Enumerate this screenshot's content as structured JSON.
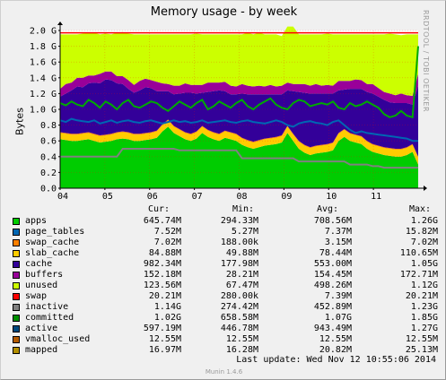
{
  "chart_data": {
    "type": "area",
    "title": "Memory usage - by week",
    "ylabel": "Bytes",
    "xlabel": "",
    "y_ticks": [
      "0.0",
      "0.2",
      "0.4",
      "0.6",
      "0.8",
      "1.0 G",
      "1.2 G",
      "1.4 G",
      "1.6 G",
      "1.8 G",
      "2.0 G"
    ],
    "x_ticks": [
      "04",
      "05",
      "06",
      "07",
      "08",
      "09",
      "10",
      "11"
    ],
    "ylim": [
      0,
      2.0
    ],
    "x_range": [
      0,
      8
    ],
    "grid": true,
    "legend_placement": "bottom",
    "stacked_series": [
      {
        "name": "apps",
        "color": "#00cc00",
        "values": [
          0.62,
          0.61,
          0.6,
          0.6,
          0.61,
          0.62,
          0.6,
          0.58,
          0.59,
          0.6,
          0.62,
          0.63,
          0.62,
          0.6,
          0.6,
          0.61,
          0.62,
          0.64,
          0.72,
          0.78,
          0.7,
          0.66,
          0.62,
          0.6,
          0.63,
          0.7,
          0.65,
          0.62,
          0.6,
          0.64,
          0.62,
          0.6,
          0.55,
          0.52,
          0.5,
          0.52,
          0.54,
          0.55,
          0.56,
          0.58,
          0.7,
          0.6,
          0.5,
          0.45,
          0.42,
          0.44,
          0.45,
          0.46,
          0.48,
          0.6,
          0.65,
          0.6,
          0.58,
          0.56,
          0.5,
          0.46,
          0.44,
          0.42,
          0.41,
          0.4,
          0.4,
          0.42,
          0.46,
          0.3
        ]
      },
      {
        "name": "slab_cache",
        "color": "#ffcc00",
        "values": [
          0.08,
          0.08,
          0.08,
          0.08,
          0.08,
          0.08,
          0.08,
          0.08,
          0.08,
          0.08,
          0.08,
          0.08,
          0.08,
          0.08,
          0.08,
          0.08,
          0.08,
          0.08,
          0.08,
          0.08,
          0.08,
          0.08,
          0.08,
          0.08,
          0.08,
          0.08,
          0.08,
          0.08,
          0.08,
          0.08,
          0.08,
          0.08,
          0.08,
          0.08,
          0.08,
          0.08,
          0.08,
          0.08,
          0.08,
          0.08,
          0.08,
          0.08,
          0.09,
          0.09,
          0.09,
          0.09,
          0.09,
          0.09,
          0.09,
          0.09,
          0.09,
          0.09,
          0.09,
          0.09,
          0.09,
          0.09,
          0.09,
          0.09,
          0.09,
          0.09,
          0.09,
          0.09,
          0.09,
          0.09
        ]
      },
      {
        "name": "swap_cache",
        "color": "#ff7f00",
        "values": [
          0.01,
          0.01,
          0.01,
          0.01,
          0.01,
          0.01,
          0.01,
          0.01,
          0.01,
          0.01,
          0.01,
          0.01,
          0.01,
          0.01,
          0.01,
          0.01,
          0.01,
          0.01,
          0.01,
          0.01,
          0.01,
          0.01,
          0.01,
          0.01,
          0.01,
          0.01,
          0.01,
          0.01,
          0.01,
          0.01,
          0.01,
          0.01,
          0.01,
          0.01,
          0.01,
          0.01,
          0.01,
          0.01,
          0.01,
          0.01,
          0.01,
          0.01,
          0.01,
          0.01,
          0.01,
          0.01,
          0.01,
          0.01,
          0.01,
          0.01,
          0.01,
          0.01,
          0.01,
          0.01,
          0.01,
          0.01,
          0.01,
          0.01,
          0.01,
          0.01,
          0.01,
          0.01,
          0.01,
          0.01
        ]
      },
      {
        "name": "cache",
        "color": "#330099",
        "values": [
          0.45,
          0.5,
          0.55,
          0.6,
          0.58,
          0.62,
          0.65,
          0.66,
          0.7,
          0.68,
          0.62,
          0.6,
          0.55,
          0.52,
          0.55,
          0.58,
          0.56,
          0.5,
          0.42,
          0.36,
          0.4,
          0.45,
          0.5,
          0.52,
          0.48,
          0.42,
          0.48,
          0.52,
          0.55,
          0.5,
          0.48,
          0.5,
          0.56,
          0.58,
          0.6,
          0.58,
          0.56,
          0.55,
          0.54,
          0.52,
          0.45,
          0.54,
          0.62,
          0.66,
          0.68,
          0.66,
          0.65,
          0.64,
          0.62,
          0.54,
          0.5,
          0.56,
          0.58,
          0.6,
          0.62,
          0.64,
          0.62,
          0.6,
          0.58,
          0.58,
          0.58,
          0.56,
          0.5,
          0.9
        ]
      },
      {
        "name": "buffers",
        "color": "#990099",
        "values": [
          0.1,
          0.12,
          0.1,
          0.11,
          0.12,
          0.1,
          0.09,
          0.12,
          0.1,
          0.11,
          0.09,
          0.1,
          0.11,
          0.1,
          0.12,
          0.11,
          0.1,
          0.12,
          0.1,
          0.09,
          0.11,
          0.1,
          0.12,
          0.1,
          0.11,
          0.1,
          0.12,
          0.11,
          0.1,
          0.12,
          0.11,
          0.1,
          0.12,
          0.11,
          0.1,
          0.11,
          0.1,
          0.12,
          0.1,
          0.11,
          0.1,
          0.09,
          0.1,
          0.11,
          0.1,
          0.12,
          0.1,
          0.11,
          0.1,
          0.12,
          0.11,
          0.1,
          0.12,
          0.11,
          0.1,
          0.12,
          0.11,
          0.1,
          0.11,
          0.1,
          0.12,
          0.1,
          0.11,
          0.15
        ]
      },
      {
        "name": "unused",
        "color": "#ccff00",
        "values": [
          0.69,
          0.63,
          0.61,
          0.55,
          0.56,
          0.54,
          0.54,
          0.5,
          0.48,
          0.47,
          0.55,
          0.56,
          0.59,
          0.64,
          0.59,
          0.56,
          0.58,
          0.6,
          0.62,
          0.63,
          0.65,
          0.65,
          0.62,
          0.64,
          0.65,
          0.64,
          0.61,
          0.61,
          0.61,
          0.6,
          0.65,
          0.66,
          0.63,
          0.67,
          0.66,
          0.67,
          0.66,
          0.64,
          0.66,
          0.63,
          0.71,
          0.73,
          0.63,
          0.63,
          0.65,
          0.63,
          0.65,
          0.65,
          0.65,
          0.59,
          0.59,
          0.59,
          0.57,
          0.58,
          0.63,
          0.63,
          0.68,
          0.73,
          0.76,
          0.77,
          0.74,
          0.77,
          0.78,
          0.5
        ]
      }
    ],
    "line_series": [
      {
        "name": "committed",
        "color": "#00aa00",
        "values": [
          1.08,
          1.05,
          1.1,
          1.06,
          1.04,
          1.12,
          1.08,
          1.02,
          1.1,
          1.06,
          1.0,
          1.08,
          1.12,
          1.04,
          1.02,
          1.06,
          1.1,
          1.08,
          1.02,
          0.98,
          1.04,
          1.1,
          1.06,
          1.02,
          1.08,
          1.12,
          1.0,
          1.04,
          1.1,
          1.06,
          1.02,
          1.08,
          1.12,
          1.04,
          1.0,
          1.06,
          1.1,
          1.14,
          1.06,
          1.02,
          1.0,
          1.08,
          1.12,
          1.1,
          1.04,
          1.06,
          1.08,
          1.06,
          1.1,
          1.02,
          1.0,
          1.08,
          1.04,
          1.06,
          1.1,
          1.06,
          1.02,
          0.94,
          0.9,
          0.92,
          0.98,
          0.92,
          0.9,
          1.8
        ]
      },
      {
        "name": "active",
        "color": "#0066b3",
        "values": [
          0.86,
          0.84,
          0.88,
          0.86,
          0.85,
          0.84,
          0.86,
          0.82,
          0.84,
          0.86,
          0.83,
          0.85,
          0.86,
          0.84,
          0.83,
          0.85,
          0.86,
          0.84,
          0.82,
          0.84,
          0.86,
          0.84,
          0.85,
          0.83,
          0.84,
          0.86,
          0.83,
          0.84,
          0.85,
          0.86,
          0.84,
          0.83,
          0.85,
          0.86,
          0.84,
          0.83,
          0.82,
          0.84,
          0.86,
          0.84,
          0.8,
          0.78,
          0.82,
          0.84,
          0.85,
          0.83,
          0.82,
          0.8,
          0.84,
          0.86,
          0.8,
          0.74,
          0.7,
          0.72,
          0.7,
          0.69,
          0.68,
          0.67,
          0.66,
          0.65,
          0.64,
          0.63,
          0.6,
          0.6
        ]
      },
      {
        "name": "inactive",
        "color": "#808080",
        "values": [
          0.4,
          0.4,
          0.4,
          0.4,
          0.4,
          0.4,
          0.4,
          0.4,
          0.4,
          0.4,
          0.4,
          0.5,
          0.5,
          0.5,
          0.5,
          0.5,
          0.5,
          0.5,
          0.5,
          0.5,
          0.5,
          0.48,
          0.48,
          0.48,
          0.48,
          0.48,
          0.48,
          0.48,
          0.48,
          0.48,
          0.48,
          0.48,
          0.38,
          0.38,
          0.38,
          0.38,
          0.38,
          0.38,
          0.38,
          0.38,
          0.38,
          0.38,
          0.34,
          0.34,
          0.34,
          0.34,
          0.34,
          0.34,
          0.34,
          0.34,
          0.34,
          0.3,
          0.3,
          0.3,
          0.3,
          0.28,
          0.28,
          0.26,
          0.26,
          0.26,
          0.26,
          0.26,
          0.26,
          0.26
        ]
      },
      {
        "name": "swap",
        "color": "#ff0000",
        "values": [
          1.97,
          1.97,
          1.97,
          1.97,
          1.97,
          1.97,
          1.97,
          1.97,
          1.97,
          1.97,
          1.97,
          1.97,
          1.97,
          1.97,
          1.97,
          1.97,
          1.97,
          1.97,
          1.97,
          1.97,
          1.97,
          1.97,
          1.97,
          1.97,
          1.97,
          1.97,
          1.97,
          1.97,
          1.97,
          1.97,
          1.97,
          1.97,
          1.97,
          1.97,
          1.97,
          1.97,
          1.97,
          1.97,
          1.97,
          1.97,
          1.97,
          1.97,
          1.97,
          1.97,
          1.97,
          1.97,
          1.97,
          1.97,
          1.97,
          1.97,
          1.97,
          1.97,
          1.97,
          1.97,
          1.97,
          1.97,
          1.97,
          1.97,
          1.97,
          1.97,
          1.97,
          1.97,
          1.97,
          1.97
        ]
      }
    ]
  },
  "watermark": "RRDTOOL / TOBI OETIKER",
  "legend": {
    "headers": [
      "Cur:",
      "Min:",
      "Avg:",
      "Max:"
    ],
    "rows": [
      {
        "name": "apps",
        "color": "#00cc00",
        "cur": "645.74M",
        "min": "294.33M",
        "avg": "708.56M",
        "max": "1.26G"
      },
      {
        "name": "page_tables",
        "color": "#0066b3",
        "cur": "7.52M",
        "min": "5.27M",
        "avg": "7.37M",
        "max": "15.82M"
      },
      {
        "name": "swap_cache",
        "color": "#ff8000",
        "cur": "7.02M",
        "min": "188.00k",
        "avg": "3.15M",
        "max": "7.02M"
      },
      {
        "name": "slab_cache",
        "color": "#ffcc00",
        "cur": "84.88M",
        "min": "49.88M",
        "avg": "78.44M",
        "max": "110.65M"
      },
      {
        "name": "cache",
        "color": "#330099",
        "cur": "982.34M",
        "min": "177.98M",
        "avg": "553.00M",
        "max": "1.05G"
      },
      {
        "name": "buffers",
        "color": "#990099",
        "cur": "152.18M",
        "min": "28.21M",
        "avg": "154.45M",
        "max": "172.71M"
      },
      {
        "name": "unused",
        "color": "#ccff00",
        "cur": "123.56M",
        "min": "67.47M",
        "avg": "498.26M",
        "max": "1.12G"
      },
      {
        "name": "swap",
        "color": "#ff0000",
        "cur": "20.21M",
        "min": "280.00k",
        "avg": "7.39M",
        "max": "20.21M"
      },
      {
        "name": "inactive",
        "color": "#808080",
        "cur": "1.14G",
        "min": "274.42M",
        "avg": "452.89M",
        "max": "1.23G"
      },
      {
        "name": "committed",
        "color": "#008f00",
        "cur": "1.02G",
        "min": "658.58M",
        "avg": "1.07G",
        "max": "1.85G"
      },
      {
        "name": "active",
        "color": "#00487d",
        "cur": "597.19M",
        "min": "446.78M",
        "avg": "943.49M",
        "max": "1.27G"
      },
      {
        "name": "vmalloc_used",
        "color": "#b35a00",
        "cur": "12.55M",
        "min": "12.55M",
        "avg": "12.55M",
        "max": "12.55M"
      },
      {
        "name": "mapped",
        "color": "#b38f00",
        "cur": "16.97M",
        "min": "16.28M",
        "avg": "20.82M",
        "max": "25.13M"
      }
    ]
  },
  "last_update": "Last update:  Wed Nov 12 10:55:06 2014",
  "footer": "Munin 1.4.6"
}
